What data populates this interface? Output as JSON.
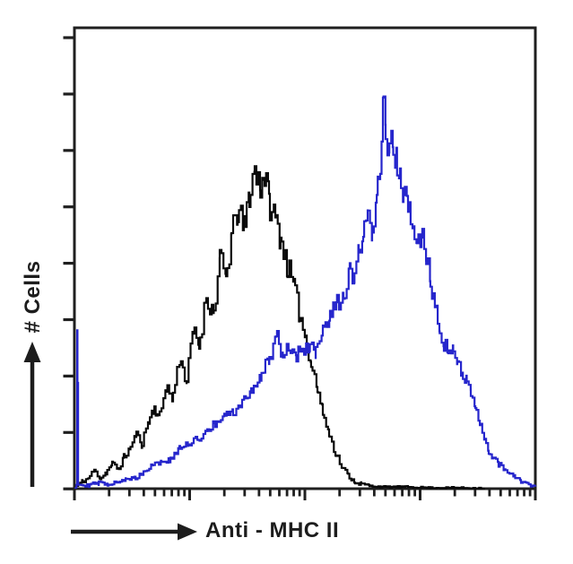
{
  "labels": {
    "y_axis": "# Cells",
    "x_axis": "Anti - MHC II"
  },
  "colors": {
    "background": "#ffffff",
    "frame": "#1f1f1f",
    "text": "#1d1d1d",
    "series_black": "#0a0a0a",
    "series_blue": "#2626cc"
  },
  "chart_data": {
    "type": "line",
    "subtype": "flow-cytometry-histogram-overlay",
    "title": "",
    "xlabel": "Anti - MHC II",
    "ylabel": "# Cells",
    "grid": false,
    "legend": false,
    "x_axis": {
      "scale": "log",
      "decades": 4,
      "minor_ticks": [
        2,
        3,
        4,
        5,
        6,
        7,
        8,
        9
      ],
      "tick_labels": []
    },
    "y_axis": {
      "scale": "linear",
      "tick_count": 9,
      "tick_labels": []
    },
    "series": [
      {
        "name": "black-histogram",
        "color": "#0a0a0a",
        "noise": [
          0.004,
          0.05
        ],
        "points": [
          [
            0.016,
            0.006
          ],
          [
            0.07,
            0.016
          ],
          [
            0.117,
            0.023
          ],
          [
            0.171,
            0.039
          ],
          [
            0.226,
            0.023
          ],
          [
            0.272,
            0.035
          ],
          [
            0.327,
            0.054
          ],
          [
            0.381,
            0.043
          ],
          [
            0.428,
            0.068
          ],
          [
            0.483,
            0.088
          ],
          [
            0.537,
            0.117
          ],
          [
            0.584,
            0.097
          ],
          [
            0.638,
            0.146
          ],
          [
            0.693,
            0.175
          ],
          [
            0.739,
            0.156
          ],
          [
            0.794,
            0.224
          ],
          [
            0.848,
            0.195
          ],
          [
            0.911,
            0.282
          ],
          [
            0.973,
            0.233
          ],
          [
            1.027,
            0.34
          ],
          [
            1.082,
            0.311
          ],
          [
            1.144,
            0.418
          ],
          [
            1.206,
            0.379
          ],
          [
            1.261,
            0.496
          ],
          [
            1.315,
            0.457
          ],
          [
            1.362,
            0.545
          ],
          [
            1.416,
            0.603
          ],
          [
            1.471,
            0.564
          ],
          [
            1.518,
            0.642
          ],
          [
            1.564,
            0.69
          ],
          [
            1.611,
            0.661
          ],
          [
            1.65,
            0.681
          ],
          [
            1.689,
            0.622
          ],
          [
            1.743,
            0.584
          ],
          [
            1.79,
            0.545
          ],
          [
            1.844,
            0.486
          ],
          [
            1.899,
            0.438
          ],
          [
            1.953,
            0.379
          ],
          [
            2.0,
            0.331
          ],
          [
            2.054,
            0.272
          ],
          [
            2.109,
            0.214
          ],
          [
            2.156,
            0.165
          ],
          [
            2.21,
            0.117
          ],
          [
            2.265,
            0.078
          ],
          [
            2.319,
            0.049
          ],
          [
            2.374,
            0.029
          ],
          [
            2.428,
            0.016
          ],
          [
            2.49,
            0.01
          ],
          [
            2.56,
            0.006
          ],
          [
            2.7,
            0.004
          ],
          [
            2.895,
            0.004
          ],
          [
            3.089,
            0.002
          ],
          [
            3.323,
            0.002
          ],
          [
            3.556,
            0.001
          ]
        ]
      },
      {
        "name": "blue-histogram",
        "color": "#2626cc",
        "noise": [
          0.004,
          0.042
        ],
        "points": [
          [
            0.01,
            0.004
          ],
          [
            0.018,
            0.01
          ],
          [
            0.024,
            0.353
          ],
          [
            0.032,
            0.01
          ],
          [
            0.132,
            0.008
          ],
          [
            0.21,
            0.012
          ],
          [
            0.288,
            0.01
          ],
          [
            0.366,
            0.016
          ],
          [
            0.444,
            0.019
          ],
          [
            0.521,
            0.023
          ],
          [
            0.599,
            0.035
          ],
          [
            0.677,
            0.054
          ],
          [
            0.755,
            0.058
          ],
          [
            0.833,
            0.062
          ],
          [
            0.911,
            0.087
          ],
          [
            0.988,
            0.097
          ],
          [
            1.066,
            0.107
          ],
          [
            1.144,
            0.126
          ],
          [
            1.222,
            0.14
          ],
          [
            1.3,
            0.156
          ],
          [
            1.377,
            0.165
          ],
          [
            1.455,
            0.185
          ],
          [
            1.533,
            0.214
          ],
          [
            1.611,
            0.243
          ],
          [
            1.689,
            0.282
          ],
          [
            1.751,
            0.335
          ],
          [
            1.805,
            0.292
          ],
          [
            1.86,
            0.307
          ],
          [
            1.922,
            0.288
          ],
          [
            1.984,
            0.301
          ],
          [
            2.039,
            0.311
          ],
          [
            2.093,
            0.292
          ],
          [
            2.156,
            0.34
          ],
          [
            2.218,
            0.37
          ],
          [
            2.272,
            0.399
          ],
          [
            2.335,
            0.418
          ],
          [
            2.389,
            0.467
          ],
          [
            2.428,
            0.447
          ],
          [
            2.467,
            0.516
          ],
          [
            2.506,
            0.545
          ],
          [
            2.545,
            0.584
          ],
          [
            2.584,
            0.564
          ],
          [
            2.623,
            0.642
          ],
          [
            2.654,
            0.7
          ],
          [
            2.677,
            0.827
          ],
          [
            2.7,
            0.769
          ],
          [
            2.731,
            0.72
          ],
          [
            2.763,
            0.759
          ],
          [
            2.794,
            0.71
          ],
          [
            2.825,
            0.671
          ],
          [
            2.856,
            0.642
          ],
          [
            2.895,
            0.603
          ],
          [
            2.934,
            0.564
          ],
          [
            2.973,
            0.525
          ],
          [
            3.012,
            0.554
          ],
          [
            3.051,
            0.502
          ],
          [
            3.089,
            0.447
          ],
          [
            3.128,
            0.409
          ],
          [
            3.167,
            0.35
          ],
          [
            3.206,
            0.315
          ],
          [
            3.245,
            0.292
          ],
          [
            3.284,
            0.301
          ],
          [
            3.323,
            0.272
          ],
          [
            3.362,
            0.257
          ],
          [
            3.401,
            0.237
          ],
          [
            3.44,
            0.204
          ],
          [
            3.479,
            0.171
          ],
          [
            3.518,
            0.136
          ],
          [
            3.556,
            0.107
          ],
          [
            3.595,
            0.082
          ],
          [
            3.634,
            0.064
          ],
          [
            3.681,
            0.053
          ],
          [
            3.728,
            0.043
          ],
          [
            3.774,
            0.035
          ],
          [
            3.821,
            0.025
          ],
          [
            3.868,
            0.018
          ],
          [
            3.914,
            0.012
          ],
          [
            3.961,
            0.008
          ],
          [
            4.0,
            0.006
          ]
        ]
      }
    ]
  }
}
